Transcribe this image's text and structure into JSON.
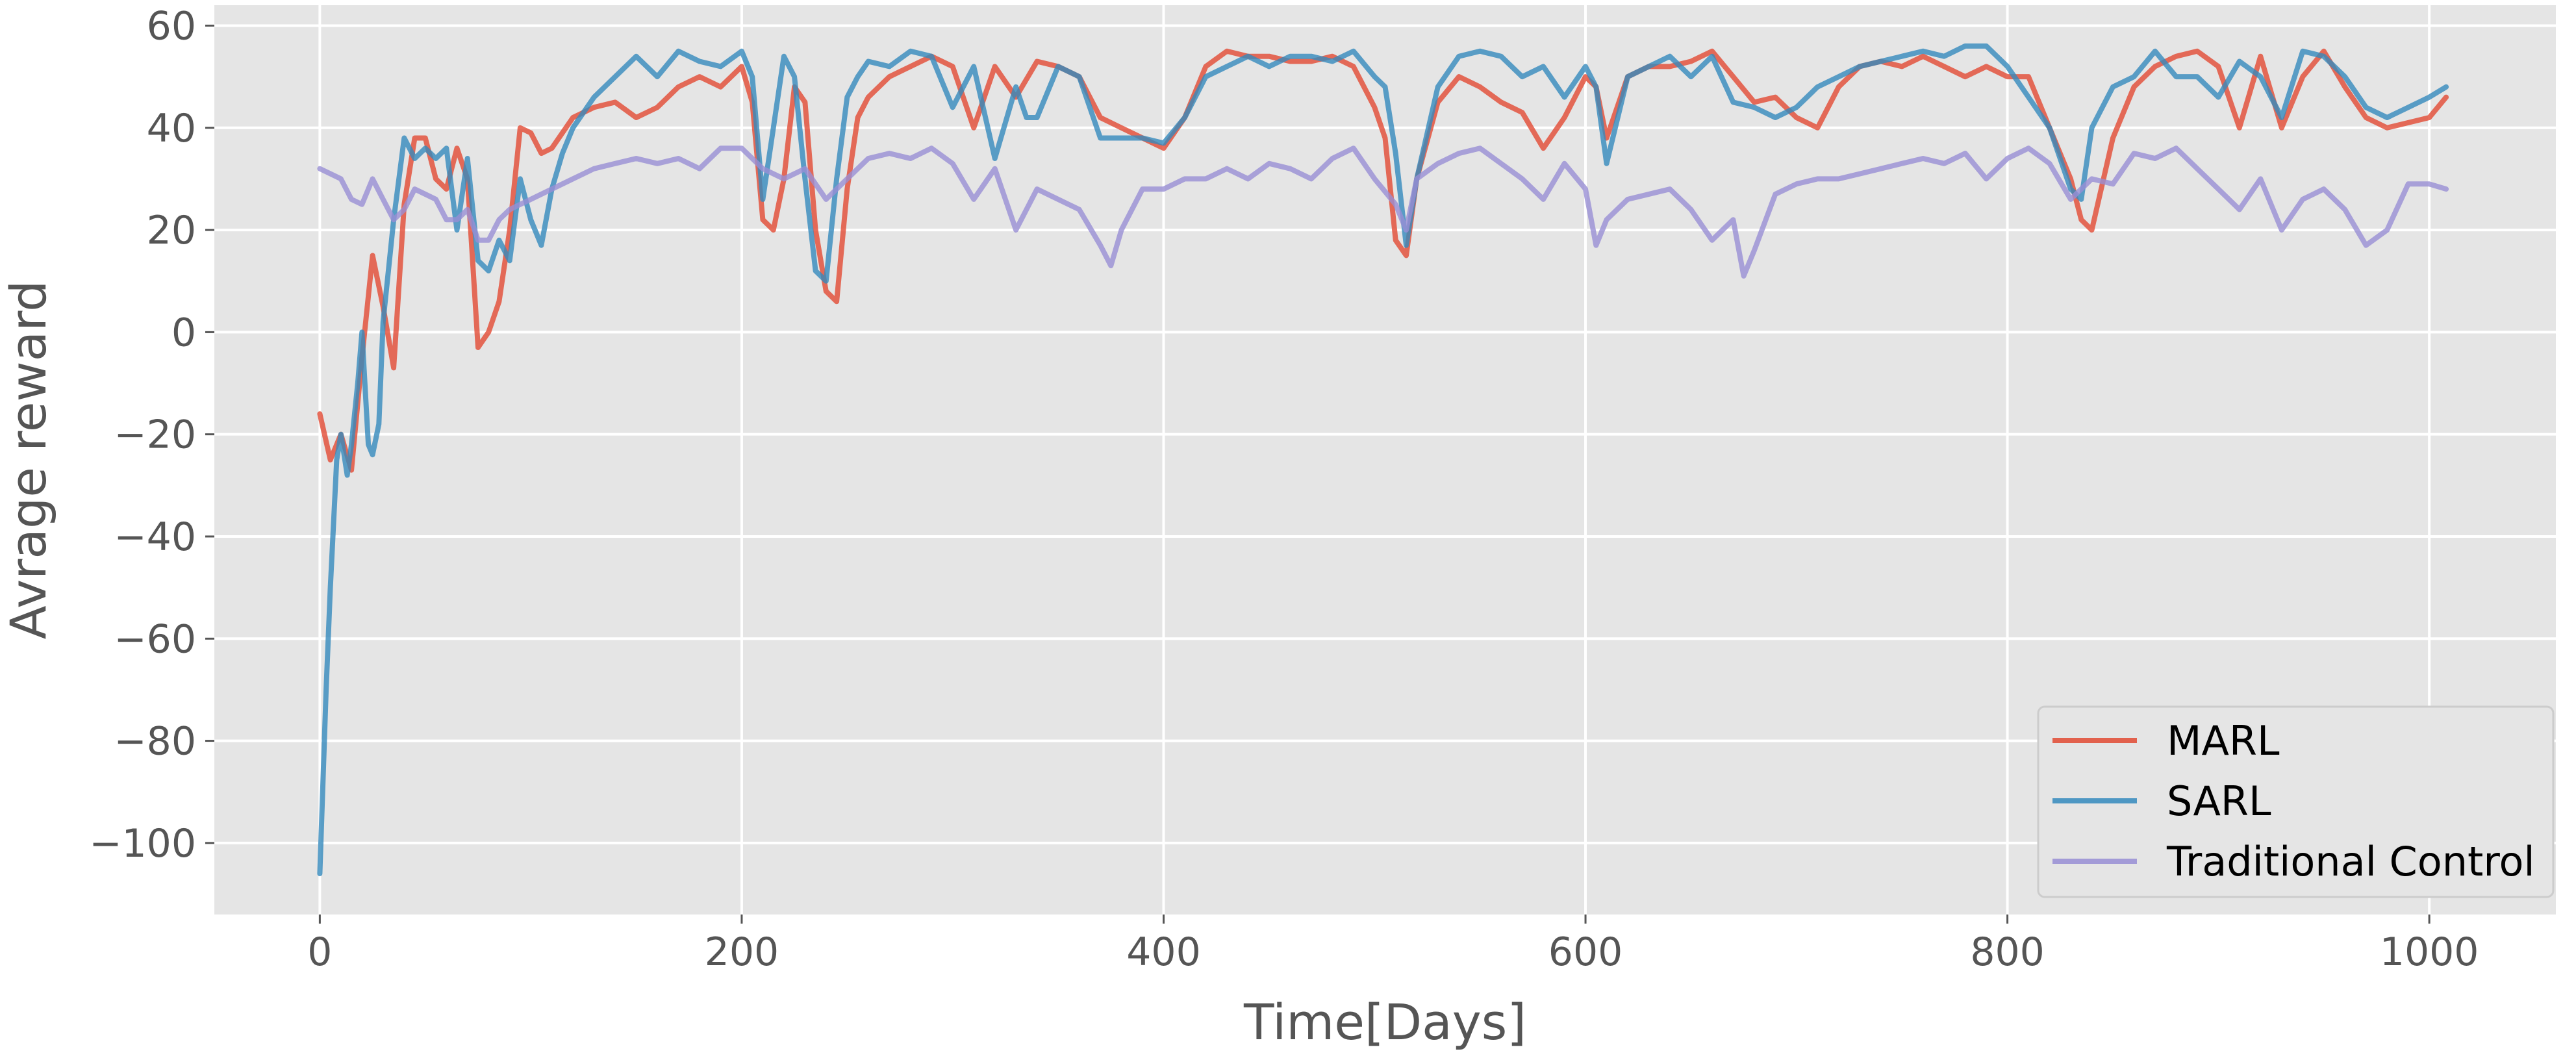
{
  "chart_data": {
    "type": "line",
    "title": "",
    "xlabel": "Time[Days]",
    "ylabel": "Avrage reward",
    "xlim": [
      -50,
      1060
    ],
    "ylim": [
      -114,
      64
    ],
    "xticks": [
      0,
      200,
      400,
      600,
      800,
      1000
    ],
    "yticks": [
      60,
      40,
      20,
      0,
      -20,
      -40,
      -60,
      -80,
      -100
    ],
    "ytick_labels": [
      "60",
      "40",
      "20",
      "0",
      "−20",
      "−40",
      "−60",
      "−80",
      "−100"
    ],
    "grid": true,
    "background": "#e5e5e5",
    "legend_position": "bottom-right",
    "series": [
      {
        "name": "MARL",
        "color": "#e24a33",
        "x": [
          0,
          5,
          10,
          15,
          20,
          25,
          30,
          35,
          40,
          45,
          50,
          55,
          60,
          65,
          70,
          75,
          80,
          85,
          90,
          95,
          100,
          105,
          110,
          120,
          130,
          140,
          150,
          160,
          170,
          180,
          190,
          200,
          205,
          210,
          215,
          220,
          225,
          230,
          235,
          240,
          245,
          250,
          255,
          260,
          270,
          280,
          290,
          300,
          310,
          320,
          330,
          340,
          350,
          360,
          370,
          380,
          390,
          400,
          410,
          420,
          430,
          440,
          450,
          460,
          470,
          480,
          490,
          500,
          505,
          510,
          515,
          520,
          530,
          540,
          550,
          560,
          570,
          580,
          590,
          600,
          605,
          610,
          620,
          630,
          640,
          650,
          660,
          670,
          680,
          690,
          700,
          710,
          720,
          730,
          740,
          750,
          760,
          770,
          780,
          790,
          800,
          810,
          820,
          830,
          835,
          840,
          850,
          860,
          870,
          880,
          890,
          900,
          910,
          920,
          930,
          940,
          950,
          960,
          970,
          980,
          990,
          1000,
          1008
        ],
        "y": [
          -16,
          -25,
          -20,
          -27,
          -5,
          15,
          5,
          -7,
          25,
          38,
          38,
          30,
          28,
          36,
          30,
          -3,
          0,
          6,
          20,
          40,
          39,
          35,
          36,
          42,
          44,
          45,
          42,
          44,
          48,
          50,
          48,
          52,
          45,
          22,
          20,
          30,
          48,
          45,
          20,
          8,
          6,
          28,
          42,
          46,
          50,
          52,
          54,
          52,
          40,
          52,
          46,
          53,
          52,
          50,
          42,
          40,
          38,
          36,
          42,
          52,
          55,
          54,
          54,
          53,
          53,
          54,
          52,
          44,
          38,
          18,
          15,
          30,
          45,
          50,
          48,
          45,
          43,
          36,
          42,
          50,
          48,
          38,
          50,
          52,
          52,
          53,
          55,
          50,
          45,
          46,
          42,
          40,
          48,
          52,
          53,
          52,
          54,
          52,
          50,
          52,
          50,
          50,
          40,
          30,
          22,
          20,
          38,
          48,
          52,
          54,
          55,
          52,
          40,
          54,
          40,
          50,
          55,
          48,
          42,
          40,
          41,
          42,
          46
        ]
      },
      {
        "name": "SARL",
        "color": "#348abd",
        "x": [
          0,
          3,
          5,
          8,
          10,
          13,
          15,
          18,
          20,
          23,
          25,
          28,
          30,
          35,
          40,
          45,
          50,
          55,
          60,
          65,
          70,
          75,
          80,
          85,
          90,
          95,
          100,
          105,
          110,
          115,
          120,
          130,
          140,
          150,
          160,
          170,
          180,
          190,
          200,
          205,
          210,
          215,
          220,
          225,
          230,
          235,
          240,
          245,
          250,
          255,
          260,
          270,
          280,
          290,
          300,
          310,
          320,
          330,
          335,
          340,
          350,
          360,
          370,
          380,
          390,
          400,
          410,
          420,
          430,
          440,
          450,
          460,
          470,
          480,
          490,
          500,
          505,
          510,
          515,
          520,
          530,
          540,
          550,
          560,
          570,
          580,
          590,
          600,
          605,
          610,
          620,
          630,
          640,
          650,
          660,
          670,
          680,
          690,
          700,
          710,
          720,
          730,
          740,
          750,
          760,
          770,
          780,
          790,
          800,
          810,
          820,
          830,
          835,
          840,
          850,
          860,
          870,
          880,
          890,
          900,
          910,
          920,
          930,
          940,
          950,
          960,
          970,
          980,
          990,
          1000,
          1008
        ],
        "y": [
          -106,
          -70,
          -50,
          -25,
          -20,
          -28,
          -22,
          -10,
          0,
          -22,
          -24,
          -18,
          2,
          22,
          38,
          34,
          36,
          34,
          36,
          20,
          34,
          14,
          12,
          18,
          14,
          30,
          22,
          17,
          28,
          35,
          40,
          46,
          50,
          54,
          50,
          55,
          53,
          52,
          55,
          50,
          26,
          40,
          54,
          50,
          30,
          12,
          10,
          30,
          46,
          50,
          53,
          52,
          55,
          54,
          44,
          52,
          34,
          48,
          42,
          42,
          52,
          50,
          38,
          38,
          38,
          37,
          42,
          50,
          52,
          54,
          52,
          54,
          54,
          53,
          55,
          50,
          48,
          35,
          17,
          30,
          48,
          54,
          55,
          54,
          50,
          52,
          46,
          52,
          48,
          33,
          50,
          52,
          54,
          50,
          54,
          45,
          44,
          42,
          44,
          48,
          50,
          52,
          53,
          54,
          55,
          54,
          56,
          56,
          52,
          46,
          40,
          28,
          26,
          40,
          48,
          50,
          55,
          50,
          50,
          46,
          53,
          50,
          42,
          55,
          54,
          50,
          44,
          42,
          44,
          46,
          48
        ]
      },
      {
        "name": "Traditional Control",
        "color": "#988ed5",
        "x": [
          0,
          10,
          15,
          20,
          25,
          30,
          35,
          40,
          45,
          50,
          55,
          60,
          65,
          70,
          75,
          80,
          85,
          90,
          95,
          100,
          110,
          120,
          130,
          140,
          150,
          160,
          170,
          180,
          190,
          200,
          210,
          220,
          230,
          240,
          250,
          260,
          270,
          280,
          290,
          300,
          310,
          320,
          330,
          340,
          350,
          360,
          370,
          375,
          380,
          390,
          400,
          410,
          420,
          430,
          440,
          450,
          460,
          470,
          480,
          490,
          500,
          510,
          515,
          520,
          530,
          540,
          550,
          560,
          570,
          580,
          590,
          600,
          605,
          610,
          620,
          630,
          640,
          650,
          660,
          670,
          675,
          680,
          690,
          700,
          710,
          720,
          730,
          740,
          750,
          760,
          770,
          780,
          790,
          800,
          810,
          820,
          830,
          840,
          850,
          860,
          870,
          880,
          890,
          900,
          910,
          920,
          930,
          940,
          950,
          960,
          970,
          980,
          990,
          1000,
          1008
        ],
        "y": [
          32,
          30,
          26,
          25,
          30,
          26,
          22,
          24,
          28,
          27,
          26,
          22,
          22,
          24,
          18,
          18,
          22,
          24,
          25,
          26,
          28,
          30,
          32,
          33,
          34,
          33,
          34,
          32,
          36,
          36,
          32,
          30,
          32,
          26,
          30,
          34,
          35,
          34,
          36,
          33,
          26,
          32,
          20,
          28,
          26,
          24,
          17,
          13,
          20,
          28,
          28,
          30,
          30,
          32,
          30,
          33,
          32,
          30,
          34,
          36,
          30,
          25,
          20,
          30,
          33,
          35,
          36,
          33,
          30,
          26,
          33,
          28,
          17,
          22,
          26,
          27,
          28,
          24,
          18,
          22,
          11,
          16,
          27,
          29,
          30,
          30,
          31,
          32,
          33,
          34,
          33,
          35,
          30,
          34,
          36,
          33,
          26,
          30,
          29,
          35,
          34,
          36,
          32,
          28,
          24,
          30,
          20,
          26,
          28,
          24,
          17,
          20,
          29,
          29,
          28
        ]
      }
    ]
  }
}
